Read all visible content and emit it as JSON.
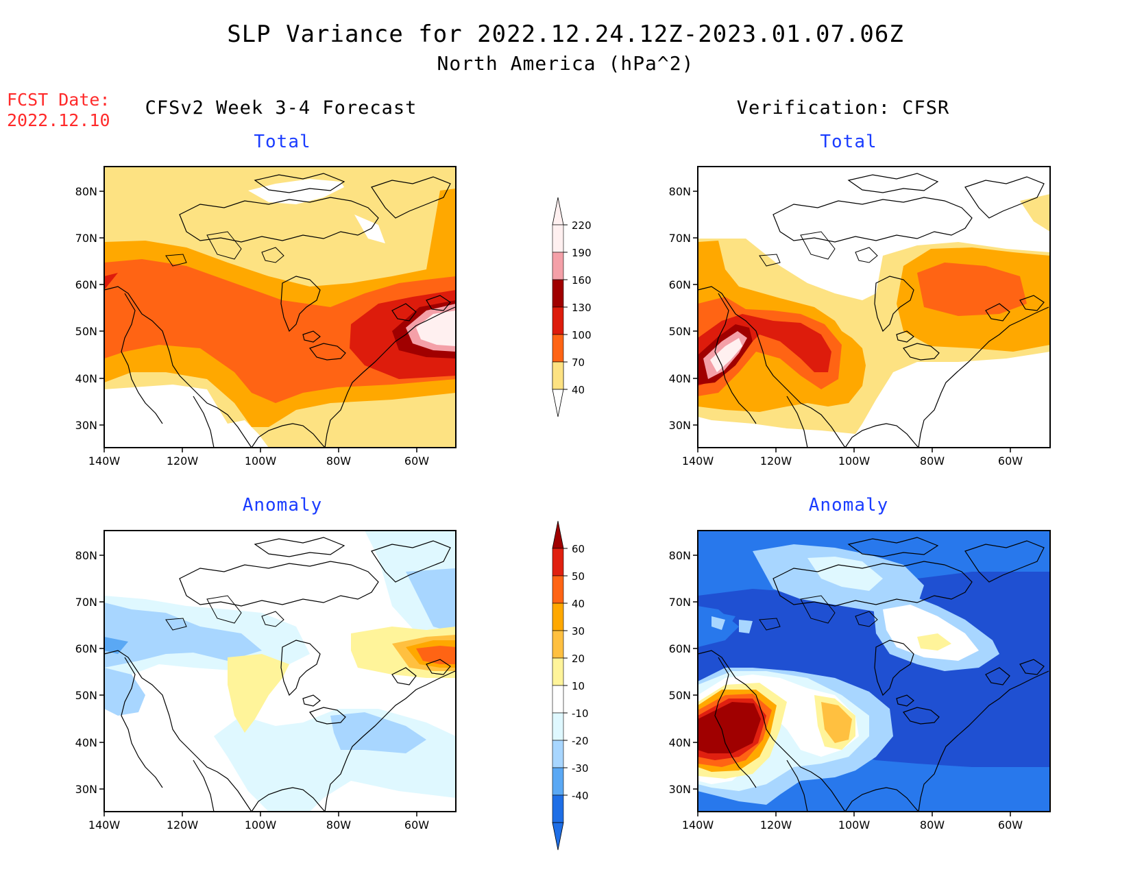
{
  "header": {
    "title": "SLP Variance for 2022.12.24.12Z-2023.01.07.06Z",
    "subtitle": "North America (hPa^2)",
    "fcst_label": "FCST Date:",
    "fcst_date": "2022.12.10"
  },
  "columns": {
    "left": "CFSv2 Week 3-4 Forecast",
    "right": "Verification: CFSR"
  },
  "panels": {
    "total_label": "Total",
    "anomaly_label": "Anomaly"
  },
  "axes": {
    "lat_labels": [
      "80N",
      "70N",
      "60N",
      "50N",
      "40N",
      "30N"
    ],
    "lon_labels": [
      "140W",
      "120W",
      "100W",
      "80W",
      "60W"
    ]
  },
  "colorbar_total": {
    "levels": [
      "220",
      "190",
      "160",
      "130",
      "100",
      "70",
      "40"
    ],
    "colors": [
      "#fff0f0",
      "#f4a0a8",
      "#a00000",
      "#dd1c0c",
      "#ff6414",
      "#ffa800",
      "#fde282"
    ]
  },
  "colorbar_anomaly": {
    "levels": [
      "60",
      "50",
      "40",
      "30",
      "20",
      "10",
      "-10",
      "-20",
      "-30",
      "-40"
    ],
    "colors": [
      "#a00000",
      "#e02010",
      "#ff6414",
      "#ffa800",
      "#ffc040",
      "#fff49a",
      "#ffffff",
      "#dff8ff",
      "#a8d6ff",
      "#5aa8f4",
      "#1e6ee6"
    ]
  },
  "colors": {
    "title_accent": "#1a3cff",
    "fcst_red": "#ff2a2a",
    "ocean_blue_dark": "#1f50d2",
    "ocean_blue": "#2878ec"
  }
}
